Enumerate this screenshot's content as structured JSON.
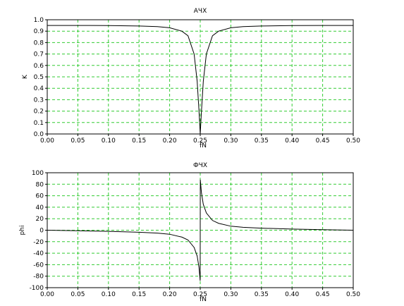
{
  "chart_data": [
    {
      "type": "line",
      "title": "АЧХ",
      "xlabel": "fN",
      "ylabel": "K",
      "xlim": [
        0,
        0.5
      ],
      "ylim": [
        0,
        1.0
      ],
      "grid": true,
      "x_ticks": [
        "0.00",
        "0.05",
        "0.10",
        "0.15",
        "0.20",
        "0.25",
        "0.30",
        "0.35",
        "0.40",
        "0.45",
        "0.50"
      ],
      "y_ticks": [
        "0.0",
        "0.1",
        "0.2",
        "0.3",
        "0.4",
        "0.5",
        "0.6",
        "0.7",
        "0.8",
        "0.9",
        "1.0"
      ],
      "x_values": [
        0.0,
        0.05,
        0.1,
        0.15,
        0.18,
        0.2,
        0.22,
        0.23,
        0.24,
        0.245,
        0.248,
        0.25,
        0.252,
        0.255,
        0.26,
        0.27,
        0.28,
        0.3,
        0.32,
        0.35,
        0.4,
        0.45,
        0.5
      ],
      "y_values": [
        0.95,
        0.95,
        0.949,
        0.945,
        0.94,
        0.93,
        0.9,
        0.86,
        0.7,
        0.46,
        0.2,
        0.0,
        0.2,
        0.46,
        0.7,
        0.86,
        0.9,
        0.93,
        0.94,
        0.945,
        0.949,
        0.95,
        0.95
      ],
      "line_color": "#000000",
      "grid_color": "#33cc33"
    },
    {
      "type": "line",
      "title": "ФЧХ",
      "xlabel": "fN",
      "ylabel": "phi",
      "xlim": [
        0,
        0.5
      ],
      "ylim": [
        -100,
        100
      ],
      "grid": true,
      "x_ticks": [
        "0.00",
        "0.05",
        "0.10",
        "0.15",
        "0.20",
        "0.25",
        "0.30",
        "0.35",
        "0.40",
        "0.45",
        "0.50"
      ],
      "y_ticks": [
        "-100",
        "-80",
        "-60",
        "-40",
        "-20",
        "0",
        "20",
        "40",
        "60",
        "80",
        "100"
      ],
      "x_values": [
        0.0,
        0.05,
        0.1,
        0.15,
        0.18,
        0.2,
        0.22,
        0.23,
        0.24,
        0.245,
        0.248,
        0.2499,
        0.2501,
        0.252,
        0.255,
        0.26,
        0.27,
        0.28,
        0.3,
        0.32,
        0.35,
        0.4,
        0.45,
        0.5
      ],
      "y_values": [
        0,
        -1,
        -2,
        -3.5,
        -5,
        -7,
        -12,
        -17,
        -30,
        -45,
        -65,
        -88,
        88,
        65,
        45,
        30,
        17,
        12,
        7,
        5,
        3.5,
        2,
        1,
        0
      ],
      "line_color": "#000000",
      "grid_color": "#33cc33"
    }
  ]
}
